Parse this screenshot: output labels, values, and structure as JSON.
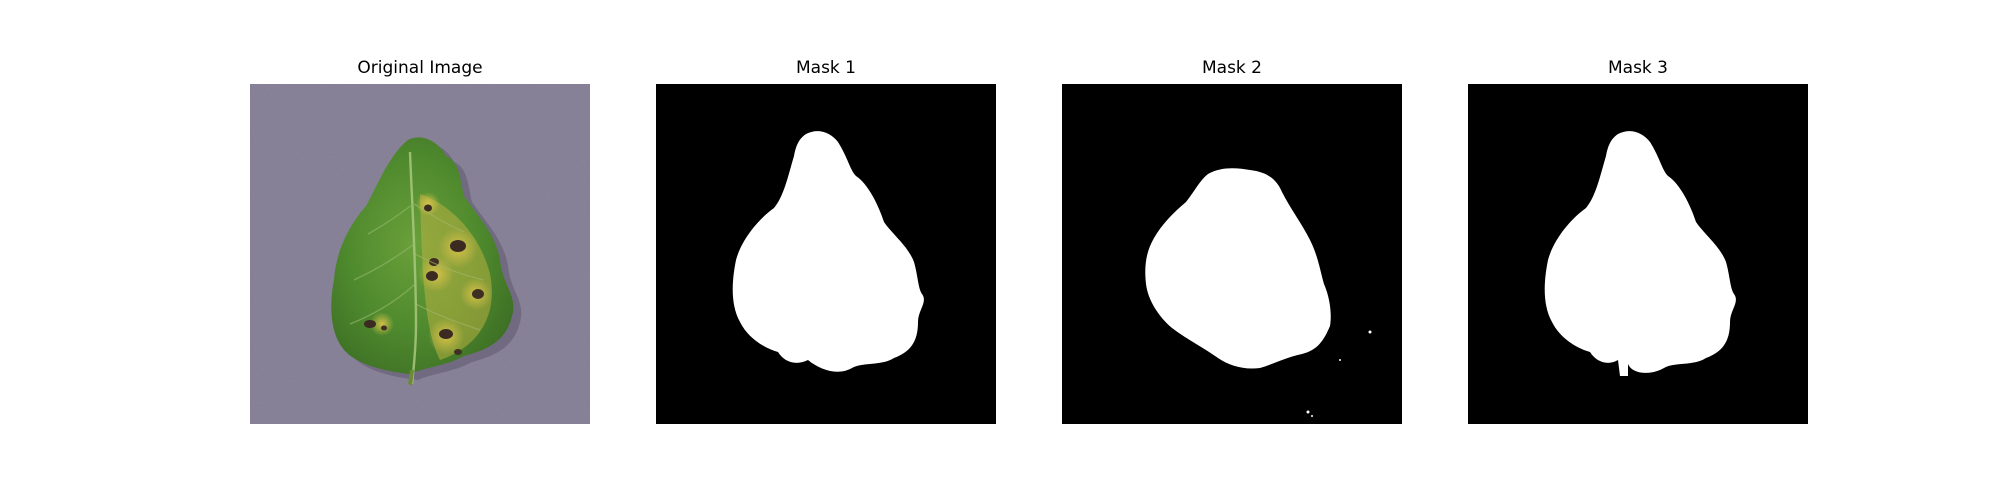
{
  "figure": {
    "panels": [
      {
        "title": "Original Image",
        "kind": "photo"
      },
      {
        "title": "Mask 1",
        "kind": "mask"
      },
      {
        "title": "Mask 2",
        "kind": "mask"
      },
      {
        "title": "Mask 3",
        "kind": "mask"
      }
    ],
    "colors": {
      "background": "#ffffff",
      "mask_background": "#000000",
      "mask_foreground": "#ffffff",
      "photo_backdrop": "#8a8499",
      "leaf_green": "#4f8a2e",
      "leaf_yellow": "#c8b640",
      "lesion_dark": "#3a2a22"
    }
  }
}
